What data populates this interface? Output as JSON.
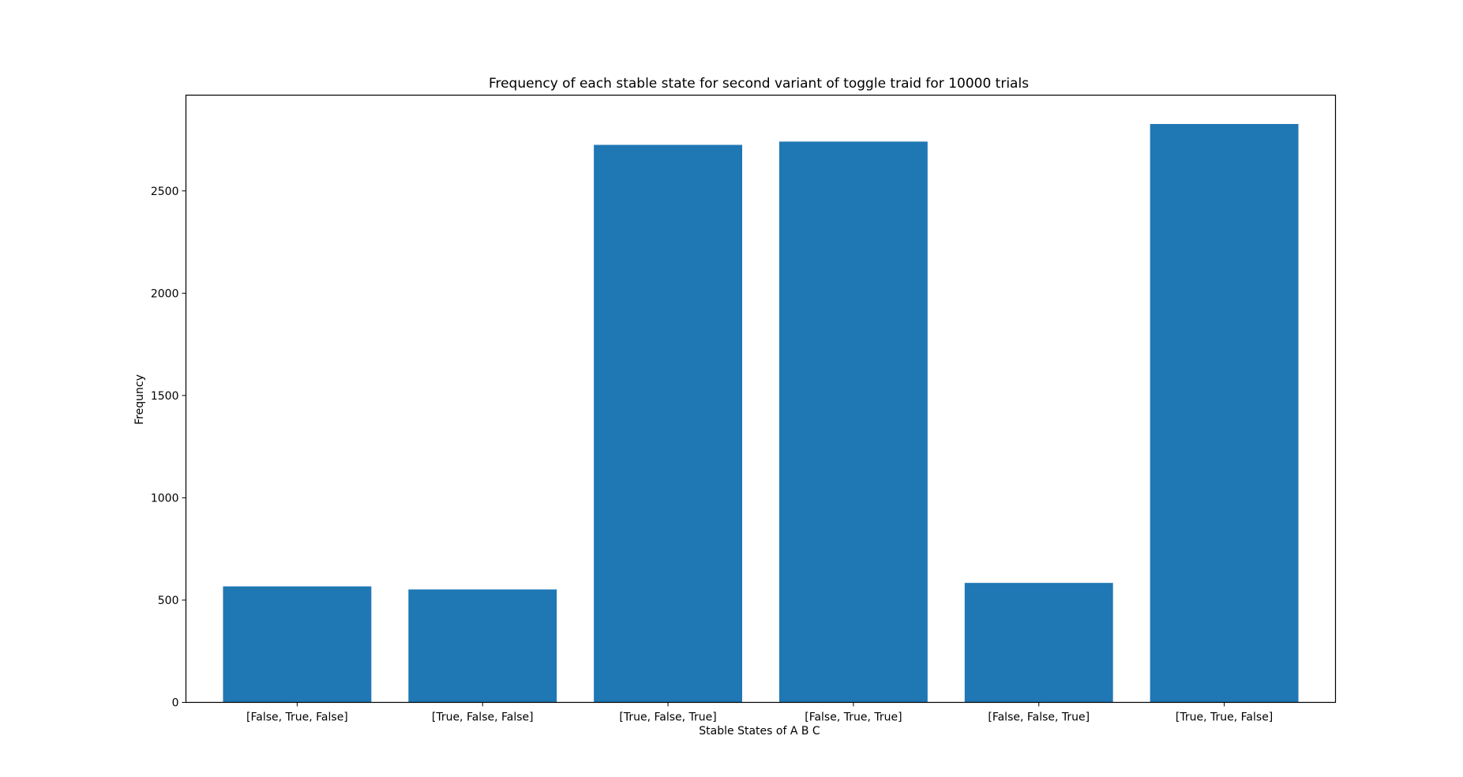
{
  "chart_data": {
    "type": "bar",
    "title": "Frequency of each stable state for second variant of toggle traid for 10000 trials",
    "xlabel": "Stable States of A B C",
    "ylabel": "Frequncy",
    "categories": [
      "[False, True, False]",
      "[True, False, False]",
      "[True, False, True]",
      "[False, True, True]",
      "[False, False, True]",
      "[True, True, False]"
    ],
    "values": [
      567,
      552,
      2725,
      2741,
      584,
      2827
    ],
    "ylim": [
      0,
      2968
    ],
    "yticks": [
      0,
      500,
      1000,
      1500,
      2000,
      2500
    ],
    "grid": false,
    "legend": "none",
    "colors": {
      "bar": "#1f77b4",
      "axes": "#000000",
      "background": "#ffffff"
    }
  }
}
